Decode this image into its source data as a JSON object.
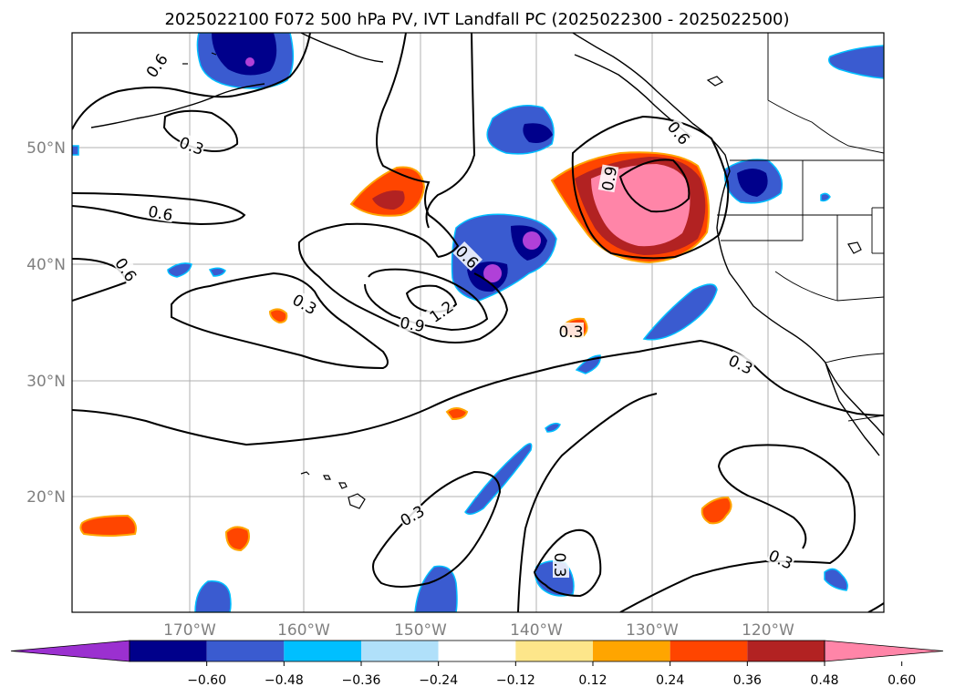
{
  "title": "2025022100 F072 500 hPa PV, IVT Landfall PC (2025022300 - 2025022500)",
  "map": {
    "lat_ticks": [
      "50°N",
      "40°N",
      "30°N",
      "20°N"
    ],
    "lon_ticks": [
      "170°W",
      "160°W",
      "150°W",
      "140°W",
      "130°W",
      "120°W"
    ],
    "contour_labels": [
      "0.6",
      "0.3",
      "0.6",
      "0.6",
      "0.3",
      "0.6",
      "0.9",
      "1.2",
      "0.6",
      "0.9",
      "0.3",
      "0.3",
      "0.3",
      "0.3",
      "0.3",
      "0.3"
    ]
  },
  "colorbar": {
    "ticks": [
      "−0.60",
      "−0.48",
      "−0.36",
      "−0.24",
      "−0.12",
      "0.12",
      "0.24",
      "0.36",
      "0.48",
      "0.60"
    ],
    "colors": [
      "#9b30d0",
      "#00008b",
      "#3a5bd0",
      "#00bfff",
      "#b0e0fa",
      "#ffffff",
      "#fde68a",
      "#ffa500",
      "#ff4500",
      "#b22222",
      "#ff85a8"
    ]
  },
  "fill_colors": {
    "purple": "#b040d8",
    "navy": "#00008b",
    "blue": "#3a5bd0",
    "cyan": "#00bfff",
    "lightblue": "#b0e0fa",
    "yellow": "#fde68a",
    "orange": "#ffa500",
    "redorange": "#ff4500",
    "darkred": "#b22222",
    "pink": "#ff85a8"
  }
}
